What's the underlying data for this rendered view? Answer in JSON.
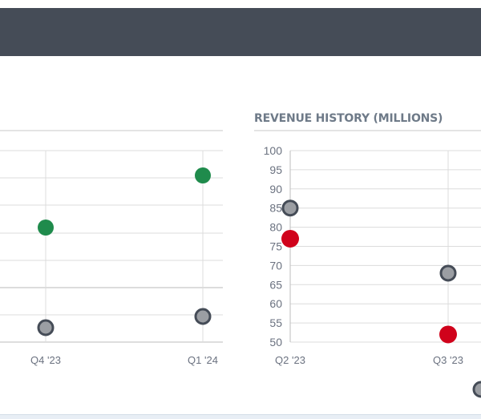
{
  "header": {
    "background": "#454c57"
  },
  "left_chart": {
    "categories": [
      "Q4 '23",
      "Q1 '24"
    ]
  },
  "right_chart": {
    "title": "REVENUE HISTORY (MILLIONS)"
  },
  "colors": {
    "green": "#1f8b4c",
    "red": "#d0021b",
    "gray_fill": "#9b9ea3",
    "gray_stroke": "#454c57",
    "grid": "#dcdcdc",
    "axis_text": "#6b7280"
  },
  "chart_data": [
    {
      "type": "scatter",
      "title": "",
      "categories": [
        "Q4 '23",
        "Q1 '24"
      ],
      "series": [
        {
          "values": [
            null,
            null
          ],
          "color": "#1f8b4c"
        },
        {
          "values": [
            null,
            null
          ],
          "color": "#9b9ea3"
        }
      ],
      "grid": true
    },
    {
      "type": "scatter",
      "title": "REVENUE HISTORY (MILLIONS)",
      "categories": [
        "Q2 '23",
        "Q3 '23"
      ],
      "yticks": [
        100,
        95,
        90,
        85,
        80,
        75,
        70,
        65,
        60,
        55,
        50
      ],
      "ylim": [
        50,
        100
      ],
      "series": [
        {
          "values": [
            85,
            68
          ],
          "color": "#9b9ea3"
        },
        {
          "values": [
            77,
            52
          ],
          "color": "#d0021b"
        }
      ],
      "grid": true
    }
  ]
}
